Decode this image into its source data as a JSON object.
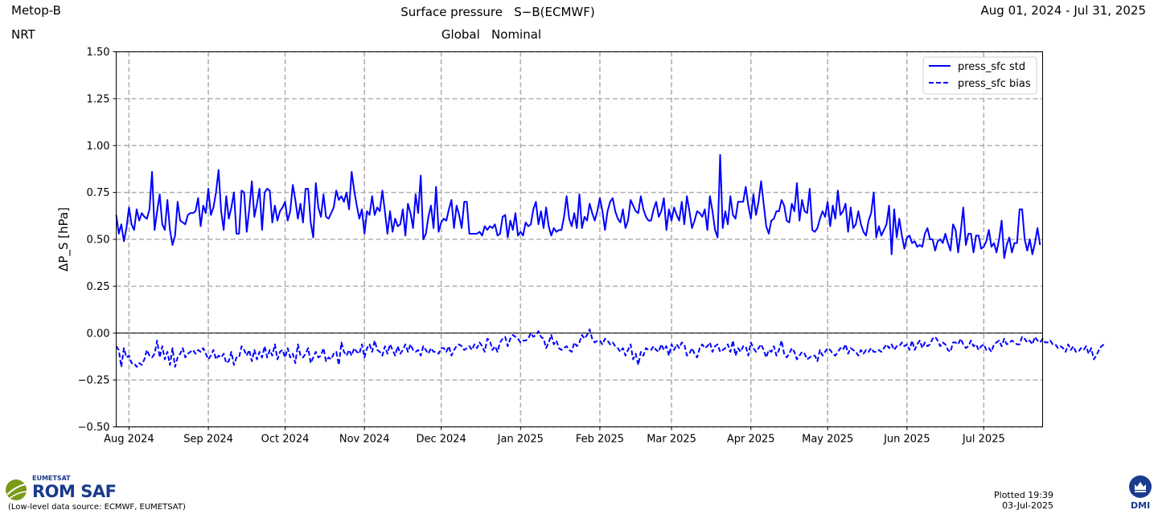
{
  "header": {
    "satellite": "Metop-B",
    "mode": "NRT",
    "title": "Surface pressure   S−B(ECMWF)",
    "subtitle": "Global   Nominal",
    "date_range": "Aug 01, 2024 - Jul 31, 2025"
  },
  "chart_data": {
    "type": "line",
    "ylabel": "ΔP_S  [hPa]",
    "xlabel": "",
    "ylim": [
      -0.5,
      1.5
    ],
    "yticks": [
      "−0.50",
      "−0.25",
      "0.00",
      "0.25",
      "0.50",
      "0.75",
      "1.00",
      "1.25",
      "1.50"
    ],
    "xlim": [
      "2024-07-27",
      "2025-07-24"
    ],
    "xticks": [
      {
        "date": "2024-08-01",
        "label": "Aug 2024"
      },
      {
        "date": "2024-09-01",
        "label": "Sep 2024"
      },
      {
        "date": "2024-10-01",
        "label": "Oct 2024"
      },
      {
        "date": "2024-11-01",
        "label": "Nov 2024"
      },
      {
        "date": "2024-12-01",
        "label": "Dec 2024"
      },
      {
        "date": "2025-01-01",
        "label": "Jan 2025"
      },
      {
        "date": "2025-02-01",
        "label": "Feb 2025"
      },
      {
        "date": "2025-03-01",
        "label": "Mar 2025"
      },
      {
        "date": "2025-04-01",
        "label": "Apr 2025"
      },
      {
        "date": "2025-05-01",
        "label": "May 2025"
      },
      {
        "date": "2025-06-01",
        "label": "Jun 2025"
      },
      {
        "date": "2025-07-01",
        "label": "Jul 2025"
      }
    ],
    "grid": true,
    "legend_position": "top-right",
    "x_start": "2024-07-27",
    "series": [
      {
        "name": "press_sfc std",
        "style": "solid",
        "color": "#0000ff",
        "values": [
          0.63,
          0.53,
          0.58,
          0.49,
          0.56,
          0.67,
          0.58,
          0.55,
          0.66,
          0.6,
          0.64,
          0.62,
          0.61,
          0.66,
          0.86,
          0.55,
          0.65,
          0.74,
          0.58,
          0.55,
          0.71,
          0.55,
          0.47,
          0.52,
          0.7,
          0.6,
          0.59,
          0.58,
          0.63,
          0.64,
          0.64,
          0.65,
          0.72,
          0.57,
          0.68,
          0.64,
          0.77,
          0.63,
          0.67,
          0.75,
          0.87,
          0.65,
          0.55,
          0.73,
          0.61,
          0.67,
          0.75,
          0.53,
          0.53,
          0.76,
          0.75,
          0.54,
          0.66,
          0.81,
          0.62,
          0.69,
          0.77,
          0.55,
          0.75,
          0.77,
          0.76,
          0.59,
          0.68,
          0.6,
          0.65,
          0.67,
          0.7,
          0.6,
          0.65,
          0.79,
          0.71,
          0.61,
          0.69,
          0.59,
          0.77,
          0.77,
          0.59,
          0.51,
          0.8,
          0.67,
          0.62,
          0.74,
          0.62,
          0.61,
          0.64,
          0.67,
          0.76,
          0.71,
          0.73,
          0.7,
          0.75,
          0.66,
          0.86,
          0.76,
          0.68,
          0.61,
          0.66,
          0.53,
          0.65,
          0.63,
          0.73,
          0.63,
          0.67,
          0.65,
          0.76,
          0.65,
          0.53,
          0.65,
          0.54,
          0.61,
          0.57,
          0.58,
          0.66,
          0.52,
          0.69,
          0.64,
          0.56,
          0.74,
          0.64,
          0.84,
          0.5,
          0.53,
          0.62,
          0.68,
          0.56,
          0.78,
          0.54,
          0.59,
          0.61,
          0.6,
          0.66,
          0.71,
          0.56,
          0.68,
          0.63,
          0.56,
          0.7,
          0.7,
          0.53,
          0.53,
          0.53,
          0.53,
          0.54,
          0.52,
          0.57,
          0.55,
          0.57,
          0.56,
          0.58,
          0.52,
          0.53,
          0.62,
          0.63,
          0.51,
          0.6,
          0.55,
          0.64,
          0.52,
          0.54,
          0.52,
          0.59,
          0.57,
          0.58,
          0.66,
          0.7,
          0.58,
          0.65,
          0.56,
          0.67,
          0.57,
          0.52,
          0.56,
          0.54,
          0.55,
          0.55,
          0.62,
          0.73,
          0.61,
          0.57,
          0.64,
          0.56,
          0.74,
          0.56,
          0.62,
          0.6,
          0.69,
          0.64,
          0.6,
          0.65,
          0.72,
          0.65,
          0.55,
          0.65,
          0.7,
          0.72,
          0.65,
          0.61,
          0.59,
          0.66,
          0.56,
          0.6,
          0.71,
          0.68,
          0.65,
          0.64,
          0.73,
          0.66,
          0.62,
          0.6,
          0.6,
          0.66,
          0.7,
          0.62,
          0.65,
          0.72,
          0.55,
          0.66,
          0.6,
          0.67,
          0.63,
          0.6,
          0.7,
          0.58,
          0.73,
          0.65,
          0.56,
          0.6,
          0.65,
          0.64,
          0.62,
          0.66,
          0.55,
          0.73,
          0.65,
          0.55,
          0.51,
          0.95,
          0.56,
          0.65,
          0.58,
          0.73,
          0.63,
          0.61,
          0.7,
          0.7,
          0.7,
          0.78,
          0.68,
          0.61,
          0.74,
          0.63,
          0.7,
          0.81,
          0.69,
          0.57,
          0.53,
          0.6,
          0.61,
          0.65,
          0.65,
          0.71,
          0.68,
          0.6,
          0.59,
          0.69,
          0.65,
          0.8,
          0.6,
          0.71,
          0.65,
          0.64,
          0.77,
          0.55,
          0.54,
          0.56,
          0.61,
          0.65,
          0.62,
          0.7,
          0.57,
          0.68,
          0.61,
          0.76,
          0.63,
          0.65,
          0.69,
          0.54,
          0.67,
          0.56,
          0.58,
          0.65,
          0.58,
          0.54,
          0.52,
          0.6,
          0.64,
          0.75,
          0.51,
          0.57,
          0.52,
          0.55,
          0.58,
          0.68,
          0.42,
          0.66,
          0.51,
          0.61,
          0.52,
          0.45,
          0.51,
          0.52,
          0.48,
          0.49,
          0.46,
          0.47,
          0.46,
          0.53,
          0.56,
          0.5,
          0.5,
          0.44,
          0.49,
          0.5,
          0.48,
          0.53,
          0.48,
          0.44,
          0.58,
          0.55,
          0.43,
          0.54,
          0.67,
          0.47,
          0.53,
          0.53,
          0.43,
          0.52,
          0.52,
          0.45,
          0.46,
          0.49,
          0.55,
          0.46,
          0.48,
          0.43,
          0.5,
          0.6,
          0.4,
          0.47,
          0.51,
          0.43,
          0.48,
          0.48,
          0.66,
          0.66,
          0.5,
          0.44,
          0.5,
          0.42,
          0.48,
          0.56,
          0.47
        ]
      },
      {
        "name": "press_sfc bias",
        "style": "dashed",
        "color": "#0000ff",
        "values": [
          -0.07,
          -0.09,
          -0.18,
          -0.08,
          -0.13,
          -0.12,
          -0.16,
          -0.16,
          -0.18,
          -0.16,
          -0.17,
          -0.14,
          -0.09,
          -0.12,
          -0.13,
          -0.11,
          -0.04,
          -0.13,
          -0.07,
          -0.14,
          -0.1,
          -0.17,
          -0.08,
          -0.18,
          -0.13,
          -0.11,
          -0.08,
          -0.13,
          -0.11,
          -0.1,
          -0.09,
          -0.11,
          -0.09,
          -0.1,
          -0.08,
          -0.11,
          -0.14,
          -0.12,
          -0.09,
          -0.14,
          -0.12,
          -0.13,
          -0.11,
          -0.16,
          -0.15,
          -0.1,
          -0.17,
          -0.13,
          -0.13,
          -0.07,
          -0.09,
          -0.12,
          -0.09,
          -0.15,
          -0.09,
          -0.14,
          -0.1,
          -0.13,
          -0.07,
          -0.13,
          -0.09,
          -0.12,
          -0.06,
          -0.14,
          -0.1,
          -0.09,
          -0.13,
          -0.08,
          -0.13,
          -0.11,
          -0.16,
          -0.06,
          -0.12,
          -0.13,
          -0.11,
          -0.08,
          -0.16,
          -0.13,
          -0.1,
          -0.13,
          -0.12,
          -0.08,
          -0.15,
          -0.13,
          -0.14,
          -0.11,
          -0.1,
          -0.17,
          -0.05,
          -0.1,
          -0.12,
          -0.09,
          -0.12,
          -0.08,
          -0.1,
          -0.11,
          -0.06,
          -0.13,
          -0.08,
          -0.06,
          -0.1,
          -0.04,
          -0.09,
          -0.1,
          -0.12,
          -0.07,
          -0.11,
          -0.06,
          -0.09,
          -0.12,
          -0.07,
          -0.11,
          -0.09,
          -0.06,
          -0.1,
          -0.06,
          -0.09,
          -0.1,
          -0.09,
          -0.12,
          -0.07,
          -0.09,
          -0.11,
          -0.08,
          -0.1,
          -0.1,
          -0.11,
          -0.08,
          -0.08,
          -0.1,
          -0.07,
          -0.12,
          -0.09,
          -0.07,
          -0.06,
          -0.07,
          -0.09,
          -0.08,
          -0.07,
          -0.09,
          -0.06,
          -0.08,
          -0.05,
          -0.07,
          -0.1,
          -0.03,
          -0.04,
          -0.09,
          -0.07,
          -0.1,
          -0.05,
          -0.03,
          -0.02,
          -0.07,
          -0.03,
          -0.01,
          -0.02,
          -0.03,
          -0.05,
          -0.04,
          -0.04,
          -0.03,
          0.0,
          -0.02,
          -0.01,
          0.01,
          -0.02,
          -0.03,
          -0.08,
          -0.05,
          -0.01,
          -0.06,
          -0.04,
          -0.08,
          -0.09,
          -0.08,
          -0.07,
          -0.09,
          -0.1,
          -0.05,
          -0.07,
          -0.05,
          -0.01,
          -0.03,
          -0.01,
          0.02,
          -0.03,
          -0.05,
          -0.04,
          -0.04,
          -0.06,
          -0.03,
          -0.04,
          -0.06,
          -0.05,
          -0.07,
          -0.08,
          -0.1,
          -0.08,
          -0.12,
          -0.09,
          -0.06,
          -0.14,
          -0.11,
          -0.17,
          -0.1,
          -0.12,
          -0.08,
          -0.09,
          -0.09,
          -0.07,
          -0.09,
          -0.1,
          -0.06,
          -0.09,
          -0.07,
          -0.12,
          -0.06,
          -0.09,
          -0.06,
          -0.08,
          -0.05,
          -0.06,
          -0.12,
          -0.11,
          -0.08,
          -0.11,
          -0.13,
          -0.08,
          -0.06,
          -0.08,
          -0.07,
          -0.05,
          -0.1,
          -0.07,
          -0.06,
          -0.1,
          -0.09,
          -0.08,
          -0.06,
          -0.1,
          -0.04,
          -0.12,
          -0.08,
          -0.1,
          -0.07,
          -0.07,
          -0.12,
          -0.05,
          -0.08,
          -0.1,
          -0.08,
          -0.06,
          -0.09,
          -0.13,
          -0.09,
          -0.1,
          -0.07,
          -0.12,
          -0.09,
          -0.04,
          -0.11,
          -0.13,
          -0.11,
          -0.08,
          -0.1,
          -0.14,
          -0.12,
          -0.1,
          -0.11,
          -0.14,
          -0.13,
          -0.12,
          -0.12,
          -0.15,
          -0.09,
          -0.12,
          -0.1,
          -0.08,
          -0.09,
          -0.11,
          -0.12,
          -0.1,
          -0.08,
          -0.09,
          -0.06,
          -0.11,
          -0.08,
          -0.09,
          -0.1,
          -0.12,
          -0.09,
          -0.11,
          -0.09,
          -0.1,
          -0.08,
          -0.1,
          -0.1,
          -0.09,
          -0.1,
          -0.08,
          -0.06,
          -0.08,
          -0.06,
          -0.09,
          -0.07,
          -0.07,
          -0.05,
          -0.07,
          -0.06,
          -0.09,
          -0.04,
          -0.09,
          -0.06,
          -0.04,
          -0.08,
          -0.05,
          -0.07,
          -0.06,
          -0.03,
          -0.02,
          -0.04,
          -0.07,
          -0.05,
          -0.06,
          -0.09,
          -0.1,
          -0.05,
          -0.05,
          -0.06,
          -0.03,
          -0.06,
          -0.08,
          -0.07,
          -0.04,
          -0.07,
          -0.06,
          -0.09,
          -0.07,
          -0.06,
          -0.09,
          -0.08,
          -0.1,
          -0.06,
          -0.05,
          -0.04,
          -0.07,
          -0.03,
          -0.06,
          -0.05,
          -0.04,
          -0.05,
          -0.06,
          -0.06,
          -0.02,
          -0.03,
          -0.05,
          -0.04,
          -0.06,
          -0.02,
          -0.04,
          -0.05,
          -0.03,
          -0.05,
          -0.05,
          -0.04,
          -0.06,
          -0.06,
          -0.08,
          -0.07,
          -0.08,
          -0.1,
          -0.06,
          -0.09,
          -0.07,
          -0.1,
          -0.1,
          -0.08,
          -0.09,
          -0.07,
          -0.11,
          -0.08,
          -0.14,
          -0.12,
          -0.09,
          -0.07,
          -0.06
        ]
      }
    ]
  },
  "footer": {
    "org_top": "EUMETSAT",
    "org_name": "ROM SAF",
    "data_source": "(Low-level data source: ECMWF, EUMETSAT)",
    "plotted_line1": "Plotted 19:39",
    "plotted_line2": "03-Jul-2025",
    "partner": "DMI"
  },
  "colors": {
    "line": "#0000ff",
    "grid": "#b0b0b0",
    "logo_green": "#7a9a1a",
    "logo_blue": "#1a3a8c",
    "dmi_blue": "#1b3c8c"
  }
}
